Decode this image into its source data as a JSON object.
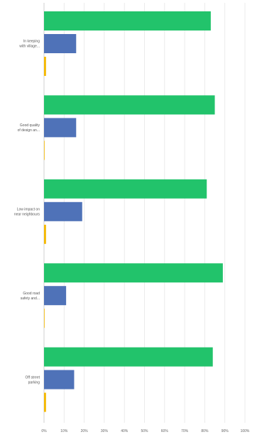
{
  "chart_data": {
    "type": "bar",
    "orientation": "horizontal",
    "categories": [
      [
        "In keeping",
        "with village..."
      ],
      [
        "Good quality",
        "of design an..."
      ],
      [
        "Low impact on",
        "near neighbours"
      ],
      [
        "Good road",
        "safety and..."
      ],
      [
        "Off street",
        "parking"
      ]
    ],
    "series": [
      {
        "color": "#22c36b",
        "values": [
          83,
          85,
          81,
          89,
          84
        ]
      },
      {
        "color": "#4f72b8",
        "values": [
          16,
          16,
          19,
          11,
          15
        ]
      },
      {
        "color": "#f5b800",
        "values": [
          1,
          0,
          1,
          0,
          1
        ]
      }
    ],
    "xlim": [
      0,
      100
    ],
    "xticks": [
      "0%",
      "10%",
      "20%",
      "30%",
      "40%",
      "50%",
      "60%",
      "70%",
      "80%",
      "90%",
      "100%"
    ],
    "grid": true,
    "legend": false
  }
}
